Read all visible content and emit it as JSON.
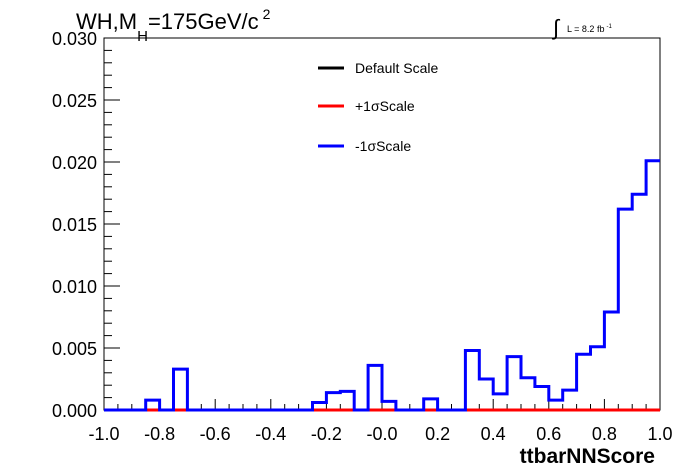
{
  "chart_data": {
    "type": "line",
    "title": {
      "main": "WH,M",
      "sub": "H",
      "rest": "=175GeV/c",
      "sup": "2"
    },
    "lumi": {
      "integral": "∫",
      "text": "L = 8.2 fb",
      "sup": "-1"
    },
    "xlabel": "ttbarNNScore",
    "ylabel": "",
    "xlim": [
      -1.0,
      1.0
    ],
    "ylim": [
      0,
      0.03
    ],
    "x_ticks": [
      "-1.0",
      "-0.8",
      "-0.6",
      "-0.4",
      "-0.2",
      "-0.0",
      "0.2",
      "0.4",
      "0.6",
      "0.8",
      "1.0"
    ],
    "y_ticks": [
      "0.000",
      "0.005",
      "0.010",
      "0.015",
      "0.020",
      "0.025",
      "0.030"
    ],
    "grid": false,
    "legend_position": "top-center",
    "bin_edges": [
      -1.0,
      -0.95,
      -0.9,
      -0.85,
      -0.8,
      -0.75,
      -0.7,
      -0.65,
      -0.6,
      -0.55,
      -0.5,
      -0.45,
      -0.4,
      -0.35,
      -0.3,
      -0.25,
      -0.2,
      -0.15,
      -0.1,
      -0.05,
      0.0,
      0.05,
      0.1,
      0.15,
      0.2,
      0.25,
      0.3,
      0.35,
      0.4,
      0.45,
      0.5,
      0.55,
      0.6,
      0.65,
      0.7,
      0.75,
      0.8,
      0.85,
      0.9,
      0.95,
      1.0
    ],
    "series": [
      {
        "name": "Default Scale",
        "color": "#000000",
        "values": [
          0,
          0,
          0,
          0,
          0,
          0,
          0,
          0,
          0,
          0,
          0,
          0,
          0,
          0,
          0,
          0,
          0,
          0,
          0,
          0,
          0,
          0,
          0,
          0,
          0,
          0,
          0,
          0,
          0,
          0,
          0,
          0,
          0,
          0,
          0,
          0,
          0,
          0,
          0,
          0
        ]
      },
      {
        "name": "+1σScale",
        "color": "#ff0000",
        "values": [
          0,
          0,
          0,
          0,
          0,
          0,
          0,
          0,
          0,
          0,
          0,
          0,
          0,
          0,
          0,
          0,
          0,
          0,
          0,
          0,
          0,
          0,
          0,
          0,
          0,
          0,
          0,
          0,
          0,
          0,
          0,
          0,
          0,
          0,
          0,
          0,
          0,
          0,
          0,
          0
        ]
      },
      {
        "name": "-1σScale",
        "color": "#0000ff",
        "values": [
          0,
          0,
          0,
          0.0008,
          0,
          0.0033,
          0,
          0,
          0,
          0,
          0,
          0,
          0,
          0,
          0,
          0.0006,
          0.0014,
          0.0015,
          0,
          0.0036,
          0.0007,
          0,
          0,
          0.0009,
          0,
          0,
          0.0048,
          0.0025,
          0.0013,
          0.0043,
          0.0026,
          0.0019,
          0.0008,
          0.0016,
          0.0045,
          0.0051,
          0.0079,
          0.0162,
          0.0174,
          0.0201
        ]
      }
    ]
  }
}
